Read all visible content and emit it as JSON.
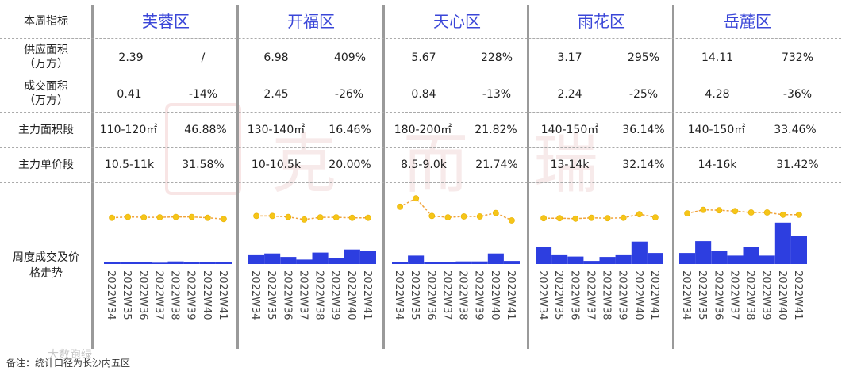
{
  "header": {
    "label": "本周指标"
  },
  "row_labels": {
    "supply": [
      "供应面积",
      "（万方）"
    ],
    "deal": [
      "成交面积",
      "（万方）"
    ],
    "main_area": "主力面积段",
    "main_price": "主力单价段",
    "trend": [
      "周度成交及价",
      "格走势"
    ]
  },
  "districts": [
    {
      "name": "芙蓉区",
      "supply": "2.39",
      "supply_chg": "/",
      "deal": "0.41",
      "deal_chg": "-14%",
      "area_seg": "110-120㎡",
      "area_pct": "46.88%",
      "price_seg": "10.5-11k",
      "price_pct": "31.58%"
    },
    {
      "name": "开福区",
      "supply": "6.98",
      "supply_chg": "409%",
      "deal": "2.45",
      "deal_chg": "-26%",
      "area_seg": "130-140㎡",
      "area_pct": "16.46%",
      "price_seg": "10-10.5k",
      "price_pct": "20.00%"
    },
    {
      "name": "天心区",
      "supply": "5.67",
      "supply_chg": "228%",
      "deal": "0.84",
      "deal_chg": "-13%",
      "area_seg": "180-200㎡",
      "area_pct": "21.82%",
      "price_seg": "8.5-9.0k",
      "price_pct": "21.74%"
    },
    {
      "name": "雨花区",
      "supply": "3.17",
      "supply_chg": "295%",
      "deal": "2.24",
      "deal_chg": "-25%",
      "area_seg": "140-150㎡",
      "area_pct": "36.14%",
      "price_seg": "13-14k",
      "price_pct": "32.14%"
    },
    {
      "name": "岳麓区",
      "supply": "14.11",
      "supply_chg": "732%",
      "deal": "4.28",
      "deal_chg": "-36%",
      "area_seg": "140-150㎡",
      "area_pct": "33.46%",
      "price_seg": "14-16k",
      "price_pct": "31.42%"
    }
  ],
  "chart_data": [
    {
      "type": "bar",
      "district": "芙蓉区",
      "categories": [
        "2022W34",
        "2022W35",
        "2022W36",
        "2022W37",
        "2022W38",
        "2022W39",
        "2022W40",
        "2022W41"
      ],
      "series": [
        {
          "values": [
            0.5,
            0.5,
            0.4,
            0.3,
            0.6,
            0.4,
            0.5,
            0.4
          ]
        },
        {
          "type": "line",
          "values": [
            10.5,
            10.7,
            10.6,
            10.6,
            10.7,
            10.7,
            10.5,
            10.2
          ]
        }
      ],
      "ylim": [
        0,
        18
      ]
    },
    {
      "type": "bar",
      "district": "开福区",
      "categories": [
        "2022W34",
        "2022W35",
        "2022W36",
        "2022W37",
        "2022W38",
        "2022W39",
        "2022W40",
        "2022W41"
      ],
      "series": [
        {
          "values": [
            2.0,
            2.4,
            1.6,
            1.0,
            2.6,
            1.4,
            3.3,
            2.9
          ]
        },
        {
          "type": "line",
          "values": [
            10.9,
            10.9,
            10.7,
            10.1,
            10.6,
            10.6,
            10.5,
            10.5
          ]
        }
      ],
      "ylim": [
        0,
        18
      ]
    },
    {
      "type": "bar",
      "district": "天心区",
      "categories": [
        "2022W34",
        "2022W35",
        "2022W36",
        "2022W37",
        "2022W38",
        "2022W39",
        "2022W40",
        "2022W41"
      ],
      "series": [
        {
          "values": [
            0.5,
            1.9,
            0.4,
            0.4,
            0.6,
            0.6,
            2.4,
            0.7
          ]
        },
        {
          "type": "line",
          "values": [
            13.0,
            14.9,
            10.9,
            10.6,
            10.8,
            10.8,
            11.6,
            9.9
          ]
        }
      ],
      "ylim": [
        0,
        18
      ]
    },
    {
      "type": "bar",
      "district": "雨花区",
      "categories": [
        "2022W34",
        "2022W35",
        "2022W36",
        "2022W37",
        "2022W38",
        "2022W39",
        "2022W40",
        "2022W41"
      ],
      "series": [
        {
          "values": [
            3.9,
            2.0,
            1.7,
            0.7,
            1.6,
            2.0,
            5.1,
            2.5
          ]
        },
        {
          "type": "line",
          "values": [
            10.4,
            10.4,
            10.3,
            10.5,
            10.4,
            10.5,
            11.3,
            10.6
          ]
        }
      ],
      "ylim": [
        0,
        18
      ]
    },
    {
      "type": "bar",
      "district": "岳麓区",
      "categories": [
        "2022W34",
        "2022W35",
        "2022W36",
        "2022W37",
        "2022W38",
        "2022W39",
        "2022W40",
        "2022W41"
      ],
      "series": [
        {
          "values": [
            2.5,
            5.2,
            3.0,
            1.9,
            3.9,
            1.9,
            9.4,
            6.3
          ]
        },
        {
          "type": "line",
          "values": [
            11.5,
            12.3,
            12.2,
            12.0,
            11.7,
            11.7,
            11.2,
            11.2
          ]
        }
      ],
      "ylim": [
        0,
        18
      ]
    }
  ],
  "watermark": [
    "克",
    "而",
    "瑞"
  ],
  "footer": {
    "note": "备注：统计口径为长沙内五区",
    "brand": "大数跑绿"
  },
  "colors": {
    "bar": "#2d3ee0",
    "line": "#f0a23a",
    "marker": "#f5c518",
    "district": "#3a46d8"
  }
}
